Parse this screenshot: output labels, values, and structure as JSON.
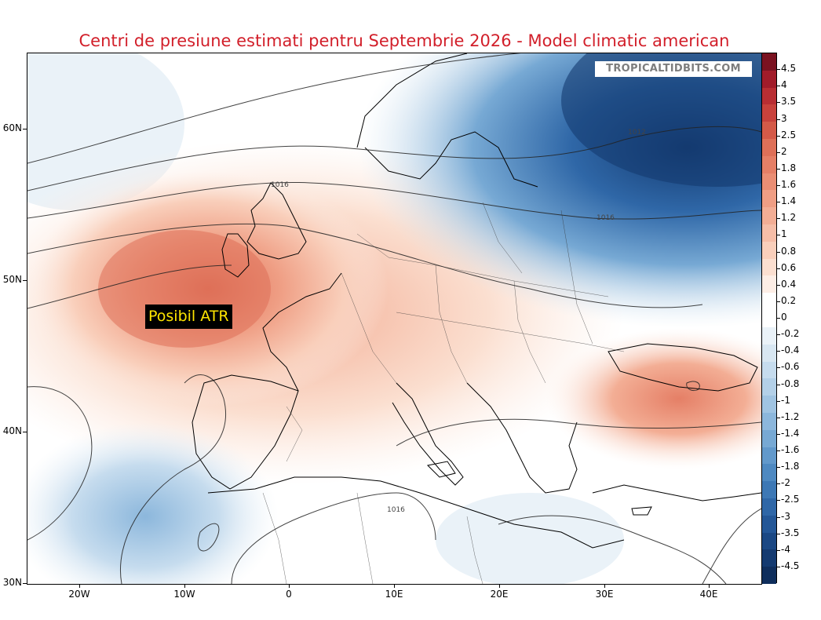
{
  "title": "Centri de presiune estimati pentru Septembrie 2026 - Model climatic american",
  "watermark": "TROPICALTIDBITS.COM",
  "annotation": "Posibil ATR",
  "latitude_labels": [
    "60N",
    "50N",
    "40N",
    "30N"
  ],
  "longitude_labels": [
    "20W",
    "10W",
    "0",
    "10E",
    "20E",
    "30E",
    "40E"
  ],
  "isobar_labels": [
    "1012",
    "1016",
    "1016",
    "1016"
  ],
  "colorbar": {
    "labels": [
      "4.5",
      "4",
      "3.5",
      "3",
      "2.5",
      "2",
      "1.8",
      "1.6",
      "1.4",
      "1.2",
      "1",
      "0.8",
      "0.6",
      "0.4",
      "0.2",
      "0",
      "-0.2",
      "-0.4",
      "-0.6",
      "-0.8",
      "-1",
      "-1.2",
      "-1.4",
      "-1.6",
      "-1.8",
      "-2",
      "-2.5",
      "-3",
      "-3.5",
      "-4",
      "-4.5"
    ],
    "colors": [
      "#7a1220",
      "#a11c2a",
      "#b82e33",
      "#c8423c",
      "#d45a48",
      "#de7058",
      "#e57f66",
      "#ea8e74",
      "#ef9e84",
      "#f3ae95",
      "#f6bea8",
      "#f9cfbb",
      "#fbdfd0",
      "#fdeee6",
      "#ffffff",
      "#ffffff",
      "#eaf2f8",
      "#d8e7f2",
      "#c6dcee",
      "#b3d0e8",
      "#a0c4e2",
      "#8cb7dc",
      "#77a9d4",
      "#6299cb",
      "#4e89c1",
      "#3d78b5",
      "#2f67a7",
      "#245797",
      "#1b4884",
      "#143a70",
      "#0f2e5c"
    ]
  },
  "map_colors": {
    "positive_strong": "#de7058",
    "positive_mid": "#f3ae95",
    "positive_light": "#fbdfd0",
    "negative_light": "#d8e7f2",
    "negative_mid": "#8cb7dc",
    "negative_strong": "#245797",
    "negative_deep": "#143a70"
  }
}
